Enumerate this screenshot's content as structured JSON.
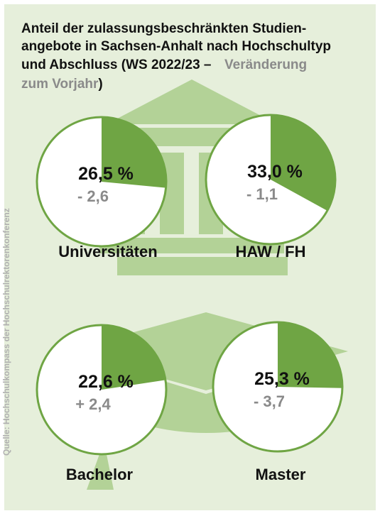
{
  "title": "Anteil der zulassungsbeschränkten Studienangebote in Sachsen-Anhalt nach Hochschultyp und Abschluss (WS 2022/23 –",
  "subtitle": "Veränderung zum Vorjahr",
  "title_end": ")",
  "source": "Quelle: Hochschulkompass der Hochschulrektorenkonferenz",
  "chart_data": [
    {
      "type": "pie",
      "label": "Universitäten",
      "values": [
        26.5
      ],
      "value_labels": [
        "26,5 %"
      ],
      "change": -2.6,
      "change_label": "- 2,6",
      "color": "#6fa544"
    },
    {
      "type": "pie",
      "label": "HAW / FH",
      "values": [
        33.0
      ],
      "value_labels": [
        "33,0 %"
      ],
      "change": -1.1,
      "change_label": "- 1,1",
      "color": "#6fa544"
    },
    {
      "type": "pie",
      "label": "Bachelor",
      "values": [
        22.6
      ],
      "value_labels": [
        "22,6 %"
      ],
      "change": 2.4,
      "change_label": "+ 2,4",
      "color": "#6fa544"
    },
    {
      "type": "pie",
      "label": "Master",
      "values": [
        25.3
      ],
      "value_labels": [
        "25,3 %"
      ],
      "change": -3.7,
      "change_label": "- 3,7",
      "color": "#6fa544"
    }
  ]
}
